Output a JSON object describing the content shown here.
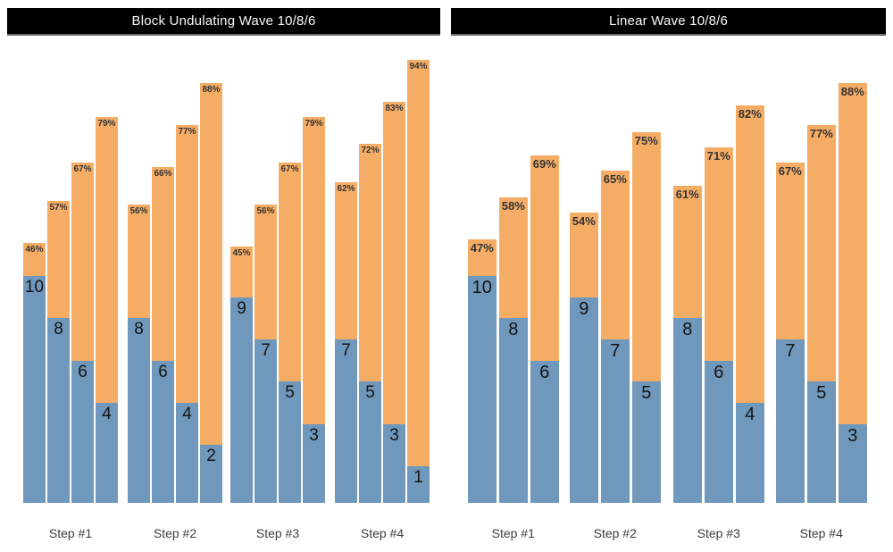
{
  "colors": {
    "reps_bar": "#7097BC",
    "intensity_bar": "#F5AD66",
    "title_bg": "#000000",
    "title_text": "#FAFAFA"
  },
  "chart_data": [
    {
      "type": "bar",
      "title": "Block Undulating Wave 10/8/6",
      "categories": [
        "Step #1",
        "Step #2",
        "Step #3",
        "Step #4"
      ],
      "legend": "none",
      "grid": false,
      "value_labels": "reps shown on blue segment, intensity % shown at orange bar top",
      "groups": [
        {
          "label": "Step #1",
          "sets": [
            {
              "reps": 10,
              "intensity_pct": 46
            },
            {
              "reps": 8,
              "intensity_pct": 57
            },
            {
              "reps": 6,
              "intensity_pct": 67
            },
            {
              "reps": 4,
              "intensity_pct": 79
            }
          ]
        },
        {
          "label": "Step #2",
          "sets": [
            {
              "reps": 8,
              "intensity_pct": 56
            },
            {
              "reps": 6,
              "intensity_pct": 66
            },
            {
              "reps": 4,
              "intensity_pct": 77
            },
            {
              "reps": 2,
              "intensity_pct": 88
            }
          ]
        },
        {
          "label": "Step #3",
          "sets": [
            {
              "reps": 9,
              "intensity_pct": 45
            },
            {
              "reps": 7,
              "intensity_pct": 56
            },
            {
              "reps": 5,
              "intensity_pct": 67
            },
            {
              "reps": 3,
              "intensity_pct": 79
            }
          ]
        },
        {
          "label": "Step #4",
          "sets": [
            {
              "reps": 7,
              "intensity_pct": 62
            },
            {
              "reps": 5,
              "intensity_pct": 72
            },
            {
              "reps": 3,
              "intensity_pct": 83
            },
            {
              "reps": 1,
              "intensity_pct": 94
            }
          ]
        }
      ]
    },
    {
      "type": "bar",
      "title": "Linear Wave 10/8/6",
      "categories": [
        "Step #1",
        "Step #2",
        "Step #3",
        "Step #4"
      ],
      "legend": "none",
      "grid": false,
      "value_labels": "reps shown on blue segment, intensity % shown at orange bar top",
      "groups": [
        {
          "label": "Step #1",
          "sets": [
            {
              "reps": 10,
              "intensity_pct": 47
            },
            {
              "reps": 8,
              "intensity_pct": 58
            },
            {
              "reps": 6,
              "intensity_pct": 69
            }
          ]
        },
        {
          "label": "Step #2",
          "sets": [
            {
              "reps": 9,
              "intensity_pct": 54
            },
            {
              "reps": 7,
              "intensity_pct": 65
            },
            {
              "reps": 5,
              "intensity_pct": 75
            }
          ]
        },
        {
          "label": "Step #3",
          "sets": [
            {
              "reps": 8,
              "intensity_pct": 61
            },
            {
              "reps": 6,
              "intensity_pct": 71
            },
            {
              "reps": 4,
              "intensity_pct": 82
            }
          ]
        },
        {
          "label": "Step #4",
          "sets": [
            {
              "reps": 7,
              "intensity_pct": 67
            },
            {
              "reps": 5,
              "intensity_pct": 77
            },
            {
              "reps": 3,
              "intensity_pct": 88
            }
          ]
        }
      ]
    }
  ]
}
